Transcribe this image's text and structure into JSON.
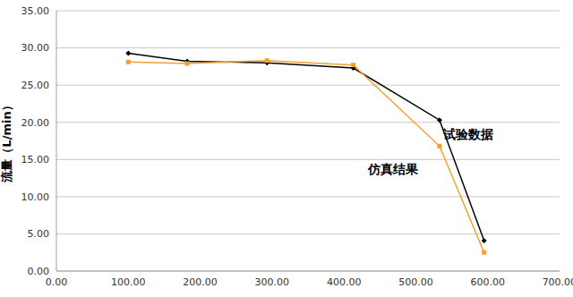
{
  "chart_data": {
    "type": "line",
    "y_label": "流量（L/min）",
    "xlim": [
      0,
      700
    ],
    "xticks": [
      {
        "value": 0,
        "label": "0.00"
      },
      {
        "value": 100,
        "label": "100.00"
      },
      {
        "value": 200,
        "label": "200.00"
      },
      {
        "value": 300,
        "label": "300.00"
      },
      {
        "value": 400,
        "label": "400.00"
      },
      {
        "value": 500,
        "label": "500.00"
      },
      {
        "value": 600,
        "label": "600.00"
      },
      {
        "value": 700,
        "label": "700.00"
      }
    ],
    "ylim": [
      0,
      35
    ],
    "yticks": [
      {
        "value": 0,
        "label": "0.00"
      },
      {
        "value": 5,
        "label": "5.00"
      },
      {
        "value": 10,
        "label": "10.00"
      },
      {
        "value": 15,
        "label": "15.00"
      },
      {
        "value": 20,
        "label": "20.00"
      },
      {
        "value": 25,
        "label": "25.00"
      },
      {
        "value": 30,
        "label": "30.00"
      },
      {
        "value": 35,
        "label": "35.00"
      }
    ],
    "grid": true,
    "series": [
      {
        "name": "试验数据",
        "color": "#000000",
        "marker": "diamond",
        "x": [
          100,
          182,
          293,
          413,
          533,
          595
        ],
        "values": [
          29.3,
          28.2,
          28.0,
          27.3,
          20.3,
          4.1
        ]
      },
      {
        "name": "仿真结果",
        "color": "#f2a12e",
        "marker": "square",
        "x": [
          100,
          182,
          293,
          413,
          533,
          595
        ],
        "values": [
          28.1,
          27.9,
          28.3,
          27.7,
          16.8,
          2.5
        ]
      }
    ]
  }
}
